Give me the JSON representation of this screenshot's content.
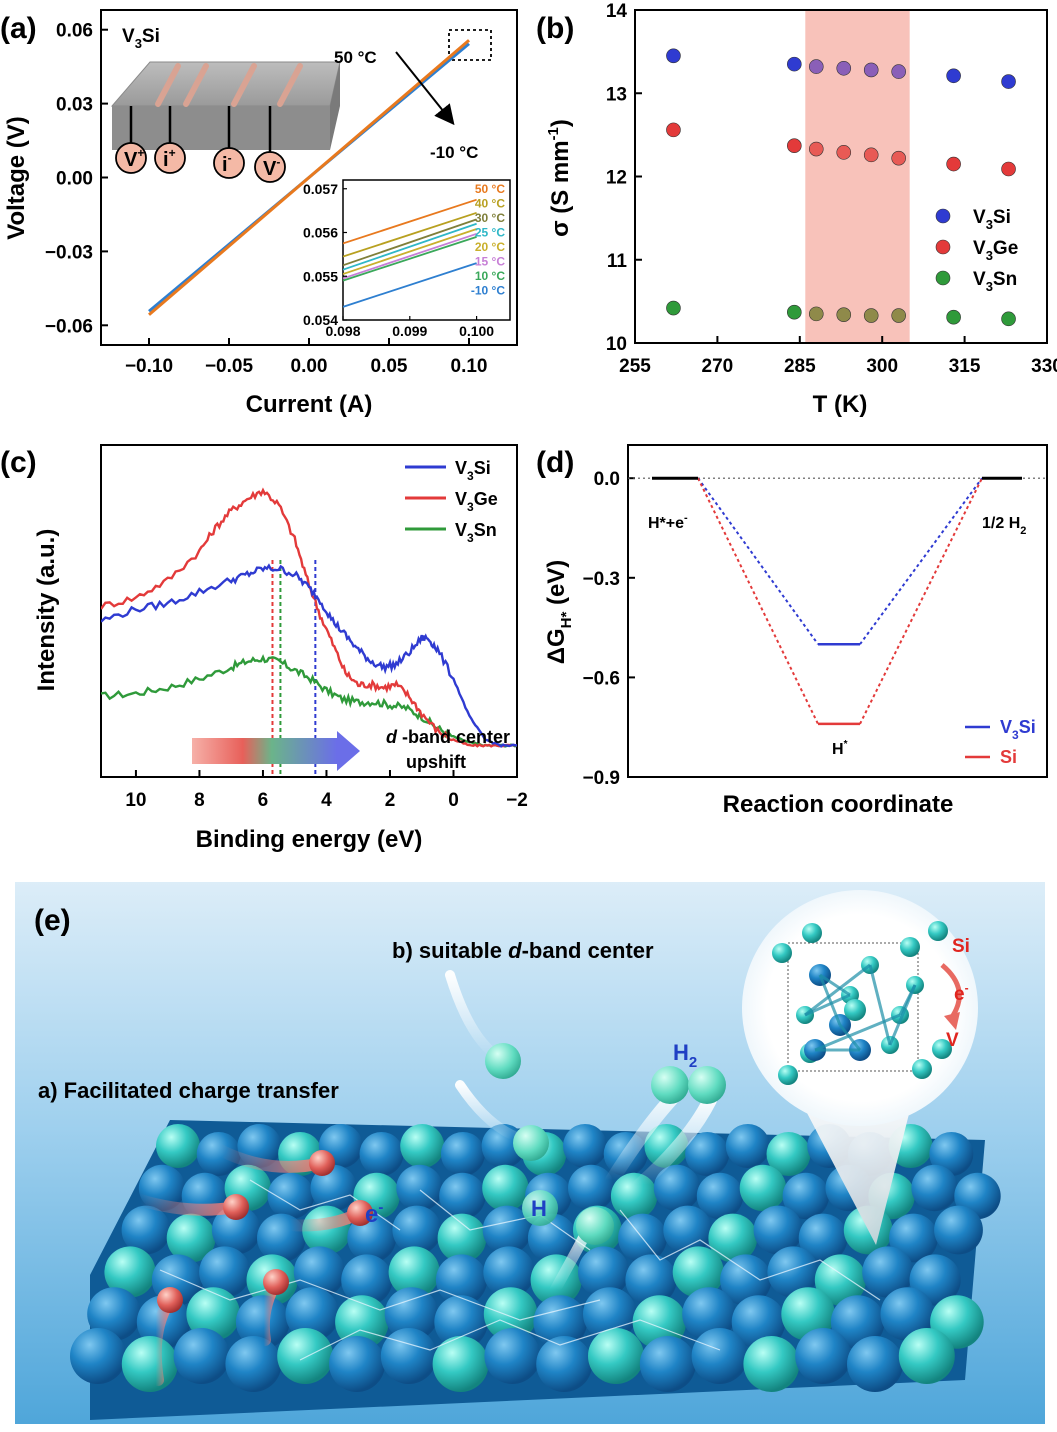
{
  "panels": {
    "a": {
      "letter": "(a)",
      "material": "V",
      "material_sub": "3",
      "material_tail": "Si",
      "arrow_top": "50 °C",
      "arrow_bottom": "-10 °C",
      "contacts": [
        {
          "main": "V",
          "sup": "+"
        },
        {
          "main": "i",
          "sup": "+"
        },
        {
          "main": "i",
          "sup": "-"
        },
        {
          "main": "V",
          "sup": "-"
        }
      ]
    },
    "b": {
      "letter": "(b)"
    },
    "c": {
      "letter": "(c)",
      "arrow_label_d": "d",
      "arrow_label_rest": " -band center",
      "arrow_label_line2": "upshift"
    },
    "d": {
      "letter": "(d)",
      "label_left_main": "H*+e",
      "label_left_sup": "-",
      "label_right_main": "1/2 H",
      "label_right_sub": "2",
      "label_mid_main": "H",
      "label_mid_sup": "*"
    },
    "e": {
      "letter": "(e)",
      "label_b_prefix": "b) suitable ",
      "label_b_d": "d",
      "label_b_suffix": "-band center",
      "label_a": "a) Facilitated charge transfer",
      "h2_main": "H",
      "h2_sub": "2",
      "h_label": "H",
      "e_main": "e",
      "e_sup": "-",
      "inset_si": "Si",
      "inset_e": "e",
      "inset_e_sup": "-",
      "inset_v": "V"
    }
  },
  "chart_data": [
    {
      "panel": "a",
      "type": "line",
      "xlabel": "Current (A)",
      "ylabel": "Voltage (V)",
      "xlim": [
        -0.13,
        0.13
      ],
      "ylim": [
        -0.068,
        0.068
      ],
      "xticks": [
        -0.1,
        -0.05,
        0.0,
        0.05,
        0.1
      ],
      "xtick_labels": [
        "−0.10",
        "−0.05",
        "0.00",
        "0.05",
        "0.10"
      ],
      "yticks": [
        -0.06,
        -0.03,
        0.0,
        0.03,
        0.06
      ],
      "ytick_labels": [
        "−0.06",
        "−0.03",
        "0.00",
        "0.03",
        "0.06"
      ],
      "series": [
        {
          "name": "50 °C",
          "color": "#e8791e",
          "x": [
            -0.1,
            0.1
          ],
          "y": [
            -0.0557,
            0.0557
          ]
        },
        {
          "name": "-10 °C",
          "color": "#2e7fd0",
          "x": [
            -0.1,
            0.1
          ],
          "y": [
            -0.0543,
            0.0543
          ]
        }
      ],
      "inset": {
        "type": "line",
        "xlim": [
          0.098,
          0.1005
        ],
        "ylim": [
          0.054,
          0.0572
        ],
        "xticks": [
          0.098,
          0.099,
          0.1
        ],
        "xtick_labels": [
          "0.098",
          "0.099",
          "0.100"
        ],
        "yticks": [
          0.054,
          0.055,
          0.056,
          0.057
        ],
        "ytick_labels": [
          "0.054",
          "0.055",
          "0.056",
          "0.057"
        ],
        "series": [
          {
            "name": "50 °C",
            "color": "#e8791e",
            "x": [
              0.098,
              0.1
            ],
            "y": [
              0.05575,
              0.05675
            ]
          },
          {
            "name": "40 °C",
            "color": "#b8a020",
            "x": [
              0.098,
              0.1
            ],
            "y": [
              0.05545,
              0.05645
            ]
          },
          {
            "name": "30 °C",
            "color": "#7f7f3a",
            "x": [
              0.098,
              0.1
            ],
            "y": [
              0.05525,
              0.0563
            ]
          },
          {
            "name": "25 °C",
            "color": "#2fb7c7",
            "x": [
              0.098,
              0.1
            ],
            "y": [
              0.05515,
              0.0562
            ]
          },
          {
            "name": "20 °C",
            "color": "#c9b02c",
            "x": [
              0.098,
              0.1
            ],
            "y": [
              0.05505,
              0.05608
            ]
          },
          {
            "name": "15 °C",
            "color": "#c77fd6",
            "x": [
              0.098,
              0.1
            ],
            "y": [
              0.05495,
              0.05597
            ]
          },
          {
            "name": "10 °C",
            "color": "#3aa85a",
            "x": [
              0.098,
              0.1
            ],
            "y": [
              0.0549,
              0.0559
            ]
          },
          {
            "name": "-10 °C",
            "color": "#2e7fd0",
            "x": [
              0.098,
              0.1
            ],
            "y": [
              0.0543,
              0.0553
            ]
          }
        ]
      }
    },
    {
      "panel": "b",
      "type": "scatter",
      "xlabel": "T (K)",
      "ylabel": "σ (S mm−1)",
      "xlim": [
        255,
        330
      ],
      "ylim": [
        10,
        14
      ],
      "xticks": [
        255,
        270,
        285,
        300,
        315,
        330
      ],
      "xtick_labels": [
        "255",
        "270",
        "285",
        "300",
        "315",
        "330"
      ],
      "yticks": [
        10,
        11,
        12,
        13,
        14
      ],
      "ytick_labels": [
        "10",
        "11",
        "12",
        "13",
        "14"
      ],
      "shaded_x": [
        286,
        305
      ],
      "legend_position": "right",
      "series": [
        {
          "name": "V3Si",
          "color": "#2f3bd1",
          "x": [
            262,
            284,
            288,
            293,
            298,
            303,
            313,
            323
          ],
          "y": [
            13.45,
            13.35,
            13.32,
            13.3,
            13.28,
            13.26,
            13.21,
            13.14
          ]
        },
        {
          "name": "V3Ge",
          "color": "#e33a3a",
          "x": [
            262,
            284,
            288,
            293,
            298,
            303,
            313,
            323
          ],
          "y": [
            12.56,
            12.37,
            12.33,
            12.29,
            12.26,
            12.22,
            12.15,
            12.09
          ]
        },
        {
          "name": "V3Sn",
          "color": "#2f9a3a",
          "x": [
            262,
            284,
            288,
            293,
            298,
            303,
            313,
            323
          ],
          "y": [
            10.42,
            10.37,
            10.35,
            10.34,
            10.33,
            10.33,
            10.31,
            10.29
          ]
        }
      ]
    },
    {
      "panel": "c",
      "type": "line",
      "xlabel": "Binding energy (eV)",
      "ylabel": "Intensity (a.u.)",
      "xlim": [
        11.1,
        -2
      ],
      "ylim": [
        0,
        1
      ],
      "xticks": [
        10,
        8,
        6,
        4,
        2,
        0,
        -2
      ],
      "xtick_labels": [
        "10",
        "8",
        "6",
        "4",
        "2",
        "0",
        "−2"
      ],
      "legend_position": "top-right",
      "dashed_markers": [
        {
          "x": 5.7,
          "color": "#e33a3a"
        },
        {
          "x": 5.45,
          "color": "#2f9a3a"
        },
        {
          "x": 4.35,
          "color": "#2f3bd1"
        }
      ],
      "series": [
        {
          "name": "V3Si",
          "color": "#2f3bd1",
          "x": [
            11.1,
            10,
            9,
            8,
            7,
            6.5,
            6,
            5.5,
            5,
            4.6,
            4.2,
            3.8,
            3.4,
            3,
            2.6,
            2.2,
            1.8,
            1.4,
            1,
            0.8,
            0.5,
            0,
            -0.5,
            -1,
            -1.5,
            -2
          ],
          "y": [
            0.48,
            0.52,
            0.54,
            0.58,
            0.62,
            0.64,
            0.66,
            0.66,
            0.64,
            0.6,
            0.55,
            0.48,
            0.43,
            0.38,
            0.34,
            0.32,
            0.33,
            0.37,
            0.42,
            0.42,
            0.38,
            0.28,
            0.15,
            0.07,
            0.05,
            0.05
          ]
        },
        {
          "name": "V3Ge",
          "color": "#e33a3a",
          "x": [
            11.1,
            10,
            9,
            8,
            7.5,
            7,
            6.5,
            6,
            5.5,
            5,
            4.6,
            4.2,
            3.8,
            3.4,
            3,
            2.6,
            2.2,
            1.8,
            1.4,
            1,
            0.5,
            0,
            -0.5,
            -1,
            -1.5,
            -2
          ],
          "y": [
            0.53,
            0.56,
            0.62,
            0.72,
            0.8,
            0.86,
            0.9,
            0.93,
            0.88,
            0.76,
            0.62,
            0.5,
            0.4,
            0.3,
            0.26,
            0.26,
            0.25,
            0.26,
            0.22,
            0.16,
            0.1,
            0.07,
            0.05,
            0.05,
            0.05,
            0.05
          ]
        },
        {
          "name": "V3Sn",
          "color": "#2f9a3a",
          "x": [
            11.1,
            10,
            9,
            8,
            7,
            6.5,
            6,
            5.5,
            5,
            4.5,
            4,
            3.5,
            3,
            2.5,
            2,
            1.5,
            1,
            0.5,
            0,
            -0.5,
            -1,
            -1.5,
            -2
          ],
          "y": [
            0.22,
            0.23,
            0.25,
            0.28,
            0.32,
            0.34,
            0.35,
            0.34,
            0.31,
            0.28,
            0.24,
            0.21,
            0.2,
            0.2,
            0.19,
            0.18,
            0.15,
            0.11,
            0.08,
            0.06,
            0.05,
            0.05,
            0.05
          ]
        }
      ]
    },
    {
      "panel": "d",
      "type": "line",
      "xlabel": "Reaction coordinate",
      "ylabel": "ΔGH*",
      "ylabel_unit": " (eV)",
      "ylim": [
        -0.9,
        0.1
      ],
      "yticks": [
        0.0,
        -0.3,
        -0.6,
        -0.9
      ],
      "ytick_labels": [
        "0.0",
        "−0.3",
        "−0.6",
        "−0.9"
      ],
      "legend_position": "bottom-right",
      "series": [
        {
          "name": "V3Si",
          "color": "#2f3bd1",
          "levels": [
            0.0,
            -0.5,
            0.0
          ]
        },
        {
          "name": "Si",
          "color": "#e33a3a",
          "levels": [
            0.0,
            -0.74,
            0.0
          ]
        }
      ]
    }
  ],
  "colors": {
    "bg_e_top": "#cfe6f5",
    "bg_e_bottom": "#5fb0de",
    "atom_dark": "#1f7fbf",
    "atom_light": "#3fd0cc",
    "h_atom": "#6fe0c8",
    "electron": "#e05a56",
    "shade": "#f8c4bc"
  }
}
